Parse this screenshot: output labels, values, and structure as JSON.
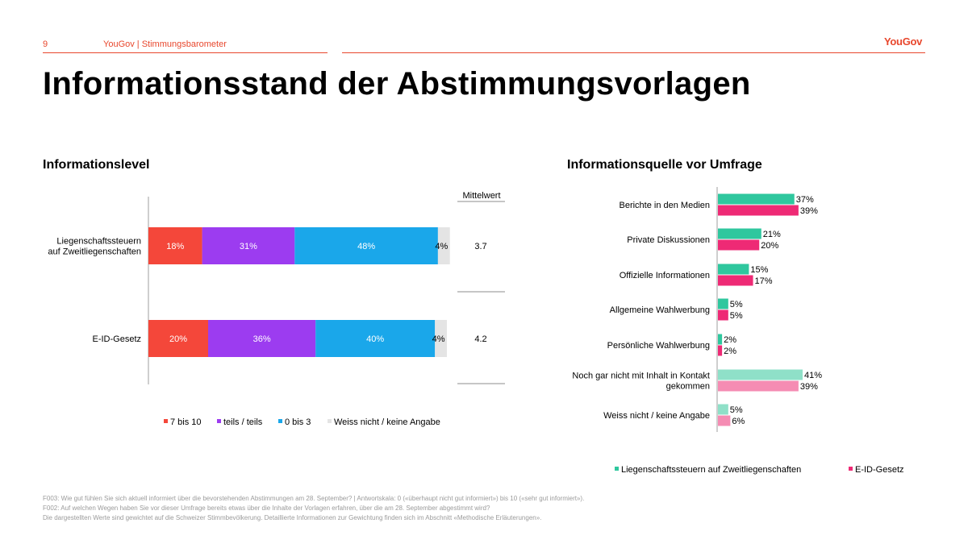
{
  "header": {
    "page_number": "9",
    "source": "YouGov | Stimmungsbarometer",
    "logo": "YouGov"
  },
  "title": "Informationsstand der Abstimmungsvorlagen",
  "chart_data": [
    {
      "type": "bar",
      "orientation": "horizontal",
      "stacked": true,
      "title": "Informationslevel",
      "categories": [
        "Liegenschaftssteuern auf Zweitliegenschaften",
        "E-ID-Gesetz"
      ],
      "category_lines": [
        [
          "Liegenschaftssteuern",
          "auf Zweitliegenschaften"
        ],
        [
          "E-ID-Gesetz"
        ]
      ],
      "series": [
        {
          "name": "7 bis 10",
          "color": "#f4473a",
          "values": [
            18,
            20
          ],
          "labels": [
            "18%",
            "20%"
          ]
        },
        {
          "name": "teils / teils",
          "color": "#9c3cf0",
          "values": [
            31,
            36
          ],
          "labels": [
            "31%",
            "36%"
          ]
        },
        {
          "name": "0 bis 3",
          "color": "#1aa7ea",
          "values": [
            48,
            40
          ],
          "labels": [
            "48%",
            "40%"
          ]
        },
        {
          "name": "Weiss nicht / keine Angabe",
          "color": "#e4e4e4",
          "values": [
            4,
            4
          ],
          "labels": [
            "4%",
            "4%"
          ]
        }
      ],
      "xlim": [
        0,
        100
      ],
      "legend_position": "bottom",
      "mean": {
        "header": "Mittelwert",
        "values": [
          "3.7",
          "4.2"
        ]
      }
    },
    {
      "type": "bar",
      "orientation": "horizontal",
      "title": "Informationsquelle vor Umfrage",
      "categories": [
        "Berichte in den Medien",
        "Private Diskussionen",
        "Offizielle Informationen",
        "Allgemeine Wahlwerbung",
        "Persönliche Wahlwerbung",
        "Noch gar nicht mit Inhalt in Kontakt gekommen",
        "Weiss nicht / keine Angabe"
      ],
      "category_lines": [
        [
          "Berichte in den Medien"
        ],
        [
          "Private Diskussionen"
        ],
        [
          "Offizielle Informationen"
        ],
        [
          "Allgemeine Wahlwerbung"
        ],
        [
          "Persönliche Wahlwerbung"
        ],
        [
          "Noch gar nicht mit Inhalt in Kontakt",
          "gekommen"
        ],
        [
          "Weiss nicht / keine Angabe"
        ]
      ],
      "series": [
        {
          "name": "Liegenschaftssteuern auf Zweitliegenschaften",
          "color": "#2fc79e",
          "light_color": "#8fe0c8",
          "values": [
            37,
            21,
            15,
            5,
            2,
            41,
            5
          ],
          "labels": [
            "37%",
            "21%",
            "15%",
            "5%",
            "2%",
            "41%",
            "5%"
          ]
        },
        {
          "name": "E-ID-Gesetz",
          "color": "#ee2a75",
          "light_color": "#f58cb3",
          "values": [
            39,
            20,
            17,
            5,
            2,
            39,
            6
          ],
          "labels": [
            "39%",
            "20%",
            "17%",
            "5%",
            "2%",
            "39%",
            "6%"
          ]
        }
      ],
      "xlim": [
        0,
        41
      ],
      "legend_position": "bottom"
    }
  ],
  "footnotes": [
    "F003: Wie gut fühlen Sie sich aktuell informiert über die bevorstehenden Abstimmungen am 28. September? | Antwortskala: 0 («überhaupt nicht gut informiert») bis 10 («sehr gut informiert»).",
    "F002: Auf welchen Wegen haben Sie vor dieser Umfrage bereits etwas über die Inhalte der Vorlagen erfahren, über die am 28. September abgestimmt wird?",
    "Die dargestellten Werte sind gewichtet auf die Schweizer Stimmbevölkerung. Detaillierte Informationen zur Gewichtung finden sich im Abschnitt «Methodische Erläuterungen»."
  ]
}
